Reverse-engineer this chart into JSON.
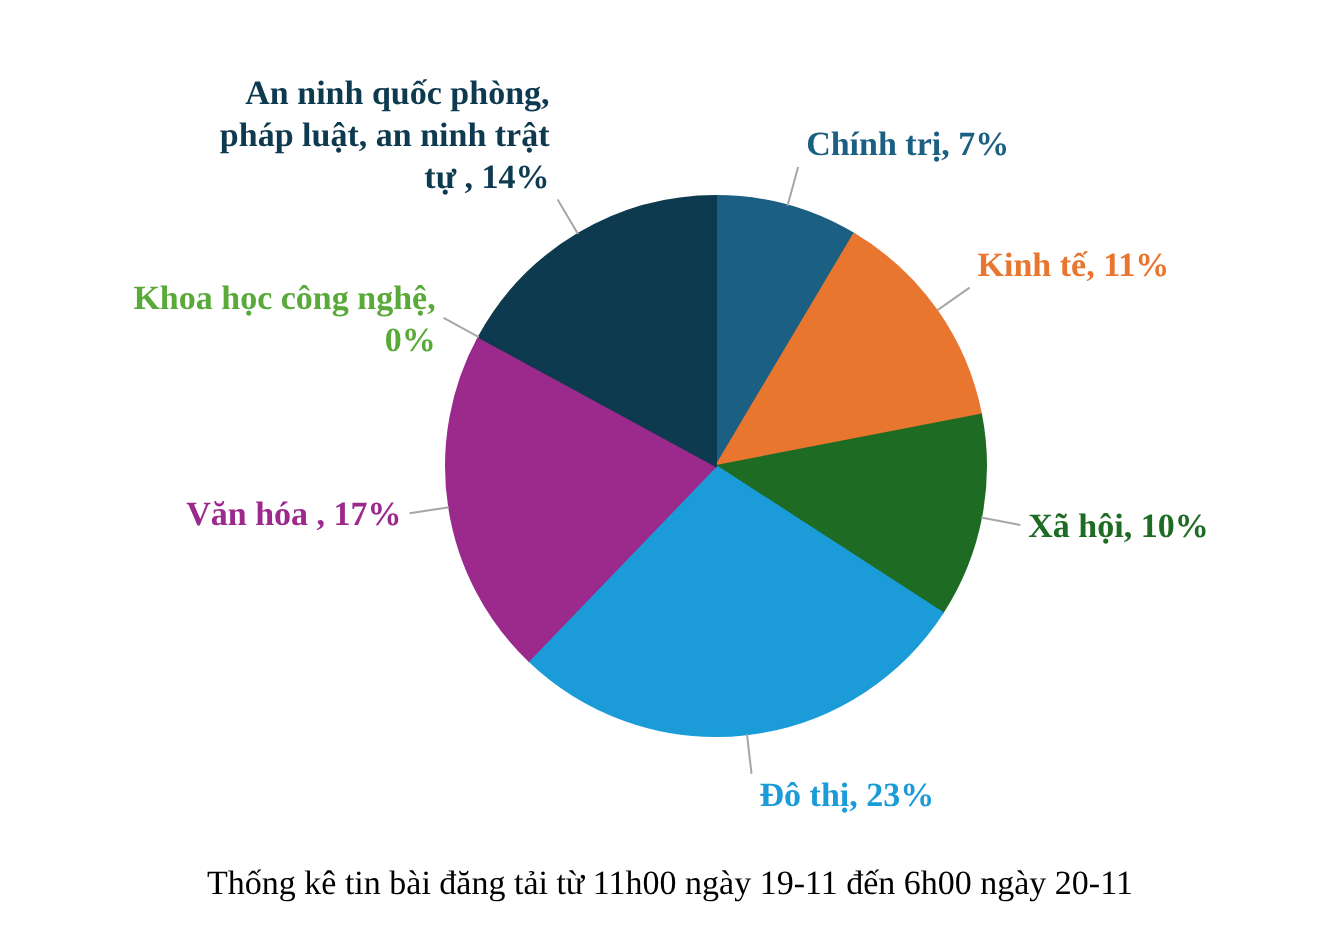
{
  "chart_data": {
    "type": "pie",
    "title": "Thống kê tin bài đăng tải từ 11h00 ngày 19-11 đến 6h00 ngày 20-11",
    "categories": [
      "Chính trị",
      "Kinh tế",
      "Xã hội",
      "Đô thị",
      "Văn hóa ",
      "Khoa học công nghệ",
      "An ninh quốc phòng, pháp luật, an ninh trật tự "
    ],
    "values": [
      7,
      11,
      10,
      23,
      17,
      0,
      14
    ],
    "colors": [
      "#1b5f82",
      "#e8762f",
      "#1e6b24",
      "#1b9cd8",
      "#9b2a8c",
      "#5aaa3a",
      "#0e3a4f"
    ],
    "value_labels": [
      "7%",
      "11%",
      "10%",
      "23%",
      "17%",
      "0%",
      "14%"
    ]
  }
}
